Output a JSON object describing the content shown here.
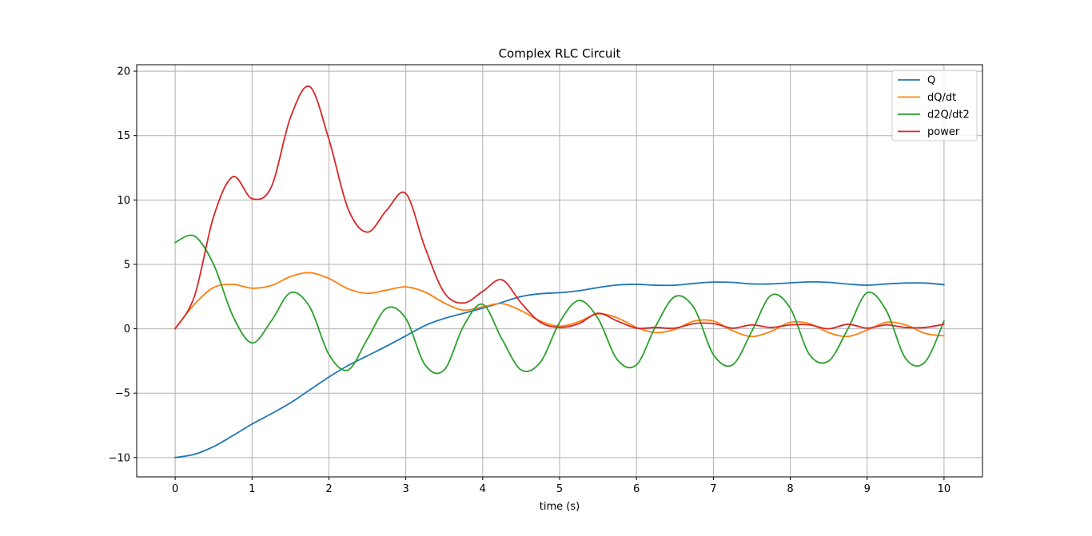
{
  "chart_data": {
    "type": "line",
    "title": "Complex RLC Circuit",
    "xlabel": "time (s)",
    "ylabel": "",
    "xlim": [
      -0.5,
      10.5
    ],
    "ylim": [
      -11.5,
      20.5
    ],
    "xticks": [
      0,
      1,
      2,
      3,
      4,
      5,
      6,
      7,
      8,
      9,
      10
    ],
    "xtick_labels": [
      "0",
      "1",
      "2",
      "3",
      "4",
      "5",
      "6",
      "7",
      "8",
      "9",
      "10"
    ],
    "yticks": [
      -10,
      -5,
      0,
      5,
      10,
      15,
      20
    ],
    "ytick_labels": [
      "−10",
      "−5",
      "0",
      "5",
      "10",
      "15",
      "20"
    ],
    "grid": true,
    "legend_position": "top-right",
    "x": [
      0,
      0.25,
      0.5,
      0.75,
      1,
      1.25,
      1.5,
      1.75,
      2,
      2.25,
      2.5,
      2.75,
      3,
      3.25,
      3.5,
      3.75,
      4,
      4.25,
      4.5,
      4.75,
      5,
      5.25,
      5.5,
      5.75,
      6,
      6.25,
      6.5,
      6.75,
      7,
      7.25,
      7.5,
      7.75,
      8,
      8.25,
      8.5,
      8.75,
      9,
      9.25,
      9.5,
      9.75,
      10
    ],
    "series": [
      {
        "name": "Q",
        "color": "#1f77b4",
        "values": [
          -10.0,
          -9.75,
          -9.15,
          -8.3,
          -7.4,
          -6.6,
          -5.75,
          -4.75,
          -3.75,
          -2.85,
          -2.1,
          -1.35,
          -0.55,
          0.25,
          0.8,
          1.2,
          1.6,
          2.05,
          2.5,
          2.72,
          2.8,
          2.95,
          3.2,
          3.4,
          3.45,
          3.38,
          3.38,
          3.52,
          3.62,
          3.6,
          3.48,
          3.48,
          3.56,
          3.64,
          3.6,
          3.47,
          3.38,
          3.48,
          3.55,
          3.55,
          3.42
        ]
      },
      {
        "name": "dQ/dt",
        "color": "#ff7f0e",
        "values": [
          0.0,
          1.9,
          3.2,
          3.45,
          3.15,
          3.35,
          4.05,
          4.35,
          3.9,
          3.1,
          2.75,
          3.0,
          3.25,
          2.85,
          2.0,
          1.45,
          1.7,
          1.95,
          1.4,
          0.6,
          0.2,
          0.55,
          1.15,
          0.85,
          0.1,
          -0.3,
          -0.05,
          0.6,
          0.6,
          -0.15,
          -0.6,
          -0.2,
          0.5,
          0.4,
          -0.3,
          -0.6,
          -0.1,
          0.5,
          0.3,
          -0.35,
          -0.55
        ]
      },
      {
        "name": "d2Q/dt2",
        "color": "#2ca02c",
        "values": [
          6.7,
          7.2,
          5.0,
          1.0,
          -1.1,
          0.6,
          2.8,
          1.7,
          -2.0,
          -3.2,
          -0.8,
          1.6,
          0.8,
          -2.8,
          -3.2,
          0.2,
          1.9,
          -0.8,
          -3.2,
          -2.6,
          0.5,
          2.2,
          0.8,
          -2.4,
          -2.8,
          0.2,
          2.5,
          1.6,
          -2.0,
          -2.8,
          -0.2,
          2.6,
          1.6,
          -2.0,
          -2.5,
          0.0,
          2.8,
          1.4,
          -2.3,
          -2.6,
          0.6
        ]
      },
      {
        "name": "power",
        "color": "#d62728",
        "values": [
          0.0,
          2.5,
          8.7,
          11.8,
          10.1,
          11.0,
          16.4,
          18.8,
          14.7,
          9.3,
          7.5,
          9.2,
          10.5,
          6.3,
          2.8,
          2.0,
          2.9,
          3.8,
          2.0,
          0.5,
          0.1,
          0.4,
          1.2,
          0.6,
          0.05,
          0.1,
          0.05,
          0.4,
          0.4,
          0.05,
          0.3,
          0.1,
          0.3,
          0.3,
          0.0,
          0.35,
          0.05,
          0.3,
          0.1,
          0.1,
          0.35
        ]
      }
    ]
  }
}
